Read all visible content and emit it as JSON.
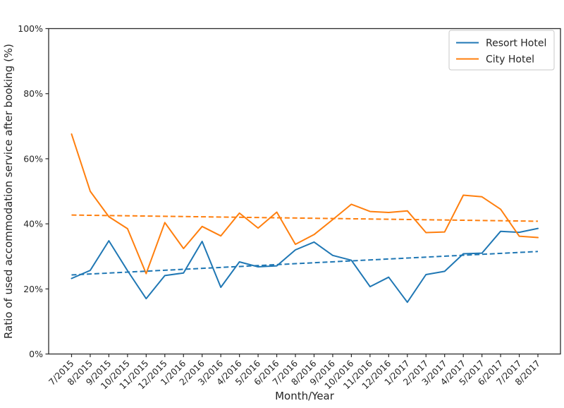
{
  "chart_data": {
    "type": "line",
    "title": "",
    "xlabel": "Month/Year",
    "ylabel": "Ratio of used accommodation service after booking (%)",
    "ylim": [
      0,
      100
    ],
    "yticks": [
      0,
      20,
      40,
      60,
      80,
      100
    ],
    "ytick_labels": [
      "0%",
      "20%",
      "40%",
      "60%",
      "80%",
      "100%"
    ],
    "grid": false,
    "legend_position": "upper right",
    "categories": [
      "7/2015",
      "8/2015",
      "9/2015",
      "10/2015",
      "11/2015",
      "12/2015",
      "1/2016",
      "2/2016",
      "3/2016",
      "4/2016",
      "5/2016",
      "6/2016",
      "7/2016",
      "8/2016",
      "9/2016",
      "10/2016",
      "11/2016",
      "12/2016",
      "1/2017",
      "2/2017",
      "3/2017",
      "4/2017",
      "5/2017",
      "6/2017",
      "7/2017",
      "8/2017"
    ],
    "series": [
      {
        "name": "Resort Hotel",
        "color": "#1f77b4",
        "style": "solid",
        "values": [
          23.2,
          25.7,
          34.8,
          25.6,
          17.0,
          24.1,
          24.9,
          34.6,
          20.5,
          28.3,
          26.8,
          27.1,
          32.0,
          34.4,
          30.3,
          28.8,
          20.7,
          23.6,
          15.9,
          24.4,
          25.4,
          30.8,
          31.0,
          37.7,
          37.4,
          38.6
        ]
      },
      {
        "name": "City Hotel",
        "color": "#ff7f0e",
        "style": "solid",
        "values": [
          67.6,
          50.0,
          42.2,
          38.5,
          24.7,
          40.4,
          32.4,
          39.2,
          36.3,
          43.3,
          38.7,
          43.6,
          33.7,
          36.7,
          41.3,
          46.0,
          43.8,
          43.5,
          44.0,
          37.3,
          37.5,
          48.8,
          48.3,
          44.5,
          36.2,
          35.8
        ]
      }
    ],
    "trend_lines": [
      {
        "name": "Resort Hotel trend",
        "color": "#1f77b4",
        "style": "dashed",
        "start_value": 24.3,
        "end_value": 31.5
      },
      {
        "name": "City Hotel trend",
        "color": "#ff7f0e",
        "style": "dashed",
        "start_value": 42.7,
        "end_value": 40.8
      }
    ]
  }
}
